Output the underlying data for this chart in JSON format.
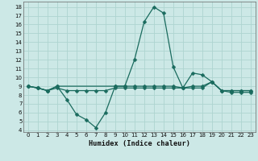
{
  "xlabel": "Humidex (Indice chaleur)",
  "bg_color": "#cce8e6",
  "grid_color": "#aed4d0",
  "line_color": "#1a6b5e",
  "xlim": [
    -0.5,
    23.5
  ],
  "ylim": [
    3.8,
    18.6
  ],
  "yticks": [
    4,
    5,
    6,
    7,
    8,
    9,
    10,
    11,
    12,
    13,
    14,
    15,
    16,
    17,
    18
  ],
  "xticks": [
    0,
    1,
    2,
    3,
    4,
    5,
    6,
    7,
    8,
    9,
    10,
    11,
    12,
    13,
    14,
    15,
    16,
    17,
    18,
    19,
    20,
    21,
    22,
    23
  ],
  "line1_x": [
    0,
    1,
    2,
    3,
    4,
    5,
    6,
    7,
    8,
    9,
    10,
    11,
    12,
    13,
    14,
    15,
    16,
    17,
    18,
    19,
    20,
    21,
    22,
    23
  ],
  "line1_y": [
    9.0,
    8.8,
    8.5,
    8.8,
    8.5,
    8.5,
    8.5,
    8.5,
    8.5,
    8.8,
    8.8,
    8.8,
    8.8,
    8.8,
    8.8,
    8.8,
    8.8,
    8.8,
    8.8,
    9.5,
    8.5,
    8.5,
    8.5,
    8.5
  ],
  "line2_x": [
    0,
    1,
    2,
    3,
    4,
    5,
    6,
    7,
    8,
    9,
    10,
    11,
    12,
    13,
    14,
    15,
    16,
    17,
    18,
    19,
    20,
    21,
    22,
    23
  ],
  "line2_y": [
    9.0,
    8.8,
    8.5,
    9.0,
    7.5,
    5.8,
    5.2,
    4.3,
    6.0,
    9.0,
    9.0,
    12.0,
    16.3,
    18.0,
    17.3,
    11.2,
    8.8,
    10.5,
    10.3,
    9.5,
    8.5,
    8.3,
    8.3,
    8.3
  ],
  "line3_x": [
    0,
    1,
    2,
    3,
    9,
    10,
    11,
    12,
    13,
    14,
    15,
    16,
    17,
    18,
    19,
    20,
    21,
    22,
    23
  ],
  "line3_y": [
    9.0,
    8.8,
    8.5,
    9.0,
    9.0,
    9.0,
    9.0,
    9.0,
    9.0,
    9.0,
    9.0,
    8.8,
    9.0,
    9.0,
    9.5,
    8.5,
    8.5,
    8.5,
    8.5
  ],
  "markersize": 2.5
}
